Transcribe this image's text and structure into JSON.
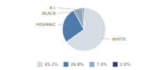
{
  "chart_data": {
    "type": "pie",
    "categories": [
      "WHITE",
      "HISPANIC",
      "BLACK",
      "A.I."
    ],
    "values": [
      65.2,
      26.8,
      7.0,
      1.0
    ],
    "value_labels": [
      "65.2%",
      "26.8%",
      "7.0%",
      "1.0%"
    ],
    "colors": [
      "#d6dce4",
      "#4d7aaa",
      "#8aaabf",
      "#1f3f6e"
    ],
    "legend": "bottom"
  }
}
